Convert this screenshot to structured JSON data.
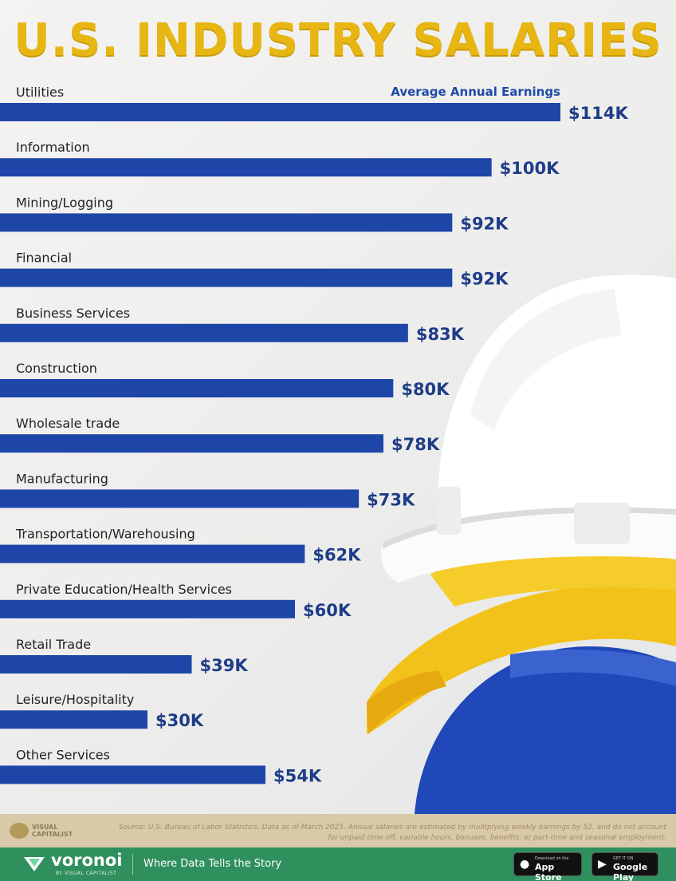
{
  "title": "U.S. INDUSTRY SALARIES",
  "series_note": "Average Annual Earnings",
  "chart_data": {
    "type": "bar",
    "orientation": "horizontal",
    "title": "U.S. INDUSTRY SALARIES",
    "categories": [
      "Utilities",
      "Information",
      "Mining/Logging",
      "Financial",
      "Business Services",
      "Construction",
      "Wholesale trade",
      "Manufacturing",
      "Transportation/Warehousing",
      "Private Education/Health Services",
      "Retail Trade",
      "Leisure/Hospitality",
      "Other Services"
    ],
    "values": [
      114,
      100,
      92,
      92,
      83,
      80,
      78,
      73,
      62,
      60,
      39,
      30,
      54
    ],
    "value_labels": [
      "$114K",
      "$100K",
      "$92K",
      "$92K",
      "$83K",
      "$80K",
      "$78K",
      "$73K",
      "$62K",
      "$60K",
      "$39K",
      "$30K",
      "$54K"
    ],
    "unit": "K USD",
    "xlim": [
      0,
      114
    ],
    "grid": false,
    "bar_color": "#1e46a8",
    "label_color": "#1f3c88"
  },
  "footer": {
    "brand_small": "VISUAL CAPITALIST",
    "source": "Source: U.S. Bureau of Labor Statistics. Data as of March 2025. Annual salaries are estimated by multiplying weekly earnings by 52, and do not account for unpaid time off, variable hours, bonuses, benefits, or part-time and seasonal employment.",
    "voronoi_name": "voronoi",
    "voronoi_sub": "BY VISUAL CAPITALIST",
    "tagline": "Where Data Tells the Story",
    "app_store_small": "Download on the",
    "app_store": "App Store",
    "google_play_small": "GET IT ON",
    "google_play": "Google Play"
  },
  "colors": {
    "title": "#e8b612",
    "bar": "#1e46a8",
    "footer_green": "#2f8f5d",
    "footer_tan": "#d8c9a8"
  }
}
